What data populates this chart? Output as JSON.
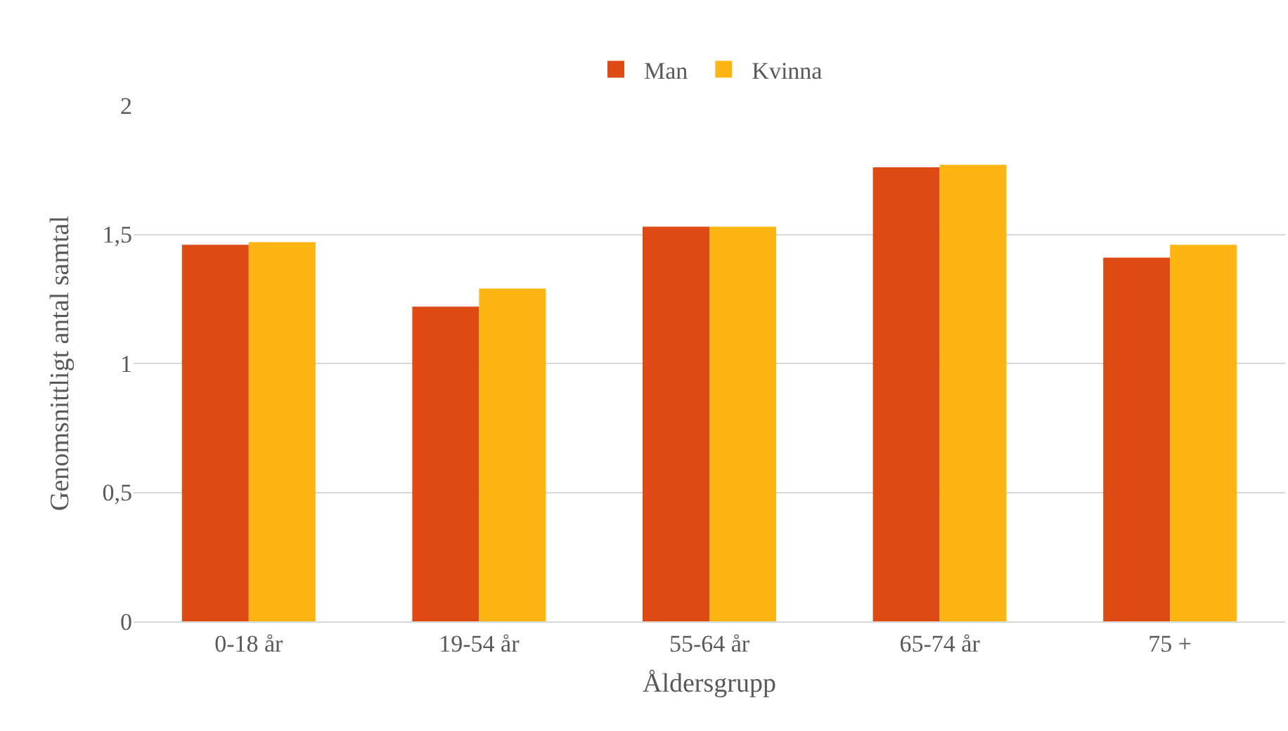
{
  "chart_data": {
    "type": "bar",
    "xlabel": "Åldersgrupp",
    "ylabel": "Genomsnittligt antal samtal",
    "categories": [
      "0-18 år",
      "19-54 år",
      "55-64 år",
      "65-74 år",
      "75 +"
    ],
    "series": [
      {
        "name": "Man",
        "color": "#dd4a14",
        "values": [
          1.46,
          1.22,
          1.53,
          1.76,
          1.41
        ]
      },
      {
        "name": "Kvinna",
        "color": "#fdb514",
        "values": [
          1.47,
          1.29,
          1.53,
          1.77,
          1.46
        ]
      }
    ],
    "ylim": [
      0,
      2
    ],
    "yticks": [
      0,
      {
        "value": 0.5,
        "label": "0,5"
      },
      1,
      {
        "value": 1.5,
        "label": "1,5"
      },
      2
    ],
    "grid": "y",
    "legend": "top"
  }
}
